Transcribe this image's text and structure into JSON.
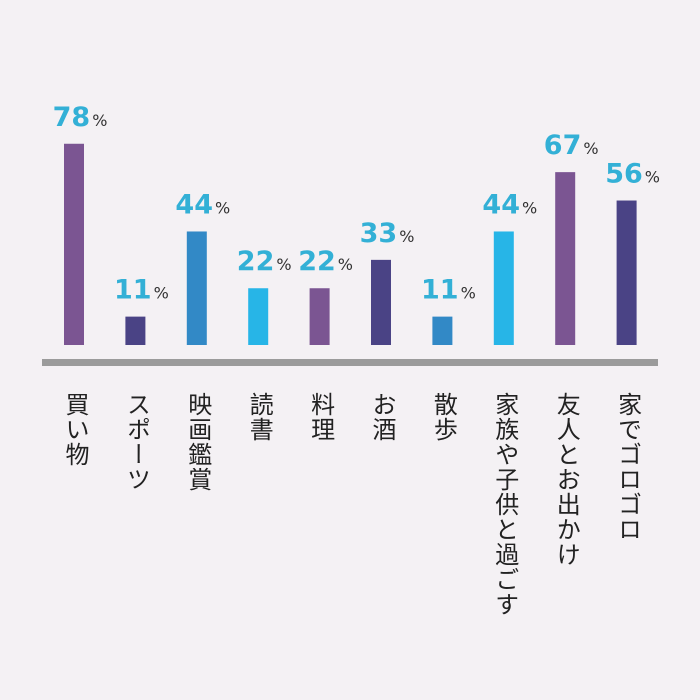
{
  "chart_data": {
    "type": "bar",
    "categories": [
      "買い物",
      "スポーツ",
      "映画鑑賞",
      "読書",
      "料理",
      "お酒",
      "散歩",
      "家族や子供と過ごす",
      "友人とお出かけ",
      "家でゴロゴロ"
    ],
    "values": [
      78,
      11,
      44,
      22,
      22,
      33,
      11,
      44,
      67,
      56
    ],
    "value_suffix": "%",
    "bar_colors": [
      "#7b5592",
      "#4a4385",
      "#3289c6",
      "#27b5e7",
      "#7b5592",
      "#4a4385",
      "#3289c6",
      "#27b5e7",
      "#7b5592",
      "#4a4385"
    ],
    "label_color": "#33b0d6",
    "baseline_color": "#9b9b9b",
    "ylim": [
      0,
      100
    ],
    "grid": false,
    "legend": "none",
    "title": "",
    "xlabel": "",
    "ylabel": ""
  }
}
